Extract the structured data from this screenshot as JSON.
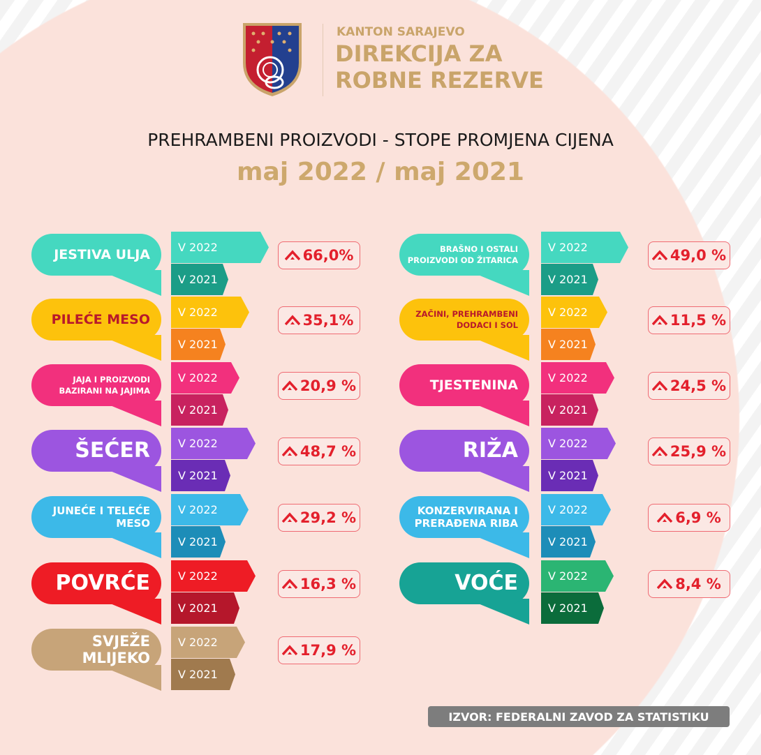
{
  "header": {
    "org_top": "KANTON SARAJEVO",
    "org_line1": "DIREKCIJA ZA",
    "org_line2": "ROBNE REZERVE",
    "title": "PREHRAMBENI PROIZVODI - STOPE PROMJENA CIJENA",
    "period": "maj 2022 / maj 2021"
  },
  "labels": {
    "year_new": "V 2022",
    "year_old": "V 2021"
  },
  "icons": {
    "change": "up-chevron-icon",
    "logo": "coat-of-arms-shield"
  },
  "left_items": [
    {
      "name": "JESTIVA ULJA",
      "change": "66,0%",
      "color": "#45d8c0",
      "color_dark": "#1b9d87",
      "text_color": "#ffffff",
      "size": "big"
    },
    {
      "name": "PILEĆE MESO",
      "change": "35,1%",
      "color": "#fdc20c",
      "color_dark": "#f5821f",
      "text_color": "#b8192b",
      "size": "big"
    },
    {
      "name": "JAJA I PROIZVODI BAZIRANI NA JAJIMA",
      "change": "20,9 %",
      "color": "#f2307d",
      "color_dark": "#c8225f",
      "text_color": "#ffffff",
      "size": "small"
    },
    {
      "name": "ŠEĆER",
      "change": "48,7 %",
      "color": "#9c55e0",
      "color_dark": "#6a2db5",
      "text_color": "#ffffff",
      "size": "huge"
    },
    {
      "name": "JUNEĆE I TELEĆE MESO",
      "change": "29,2 %",
      "color": "#3cb9e8",
      "color_dark": "#1d8db8",
      "text_color": "#ffffff",
      "size": "mid"
    },
    {
      "name": "POVRĆE",
      "change": "16,3 %",
      "color": "#ee1c25",
      "color_dark": "#b5172b",
      "text_color": "#ffffff",
      "size": "huge"
    },
    {
      "name": "SVJEŽE MLIJEKO",
      "change": "17,9 %",
      "color": "#c7a479",
      "color_dark": "#a07a4e",
      "text_color": "#ffffff",
      "size": "big2"
    }
  ],
  "right_items": [
    {
      "name": "BRAŠNO I OSTALI PROIZVODI OD ŽITARICA",
      "change": "49,0 %",
      "color": "#45d8c0",
      "color_dark": "#1b9d87",
      "text_color": "#ffffff",
      "size": "small"
    },
    {
      "name": "ZAČINI, PREHRAMBENI DODACI I SOL",
      "change": "11,5 %",
      "color": "#fdc20c",
      "color_dark": "#f5821f",
      "text_color": "#b8192b",
      "size": "small"
    },
    {
      "name": "TJESTENINA",
      "change": "24,5 %",
      "color": "#f2307d",
      "color_dark": "#c8225f",
      "text_color": "#ffffff",
      "size": "big"
    },
    {
      "name": "RIŽA",
      "change": "25,9 %",
      "color": "#9c55e0",
      "color_dark": "#6a2db5",
      "text_color": "#ffffff",
      "size": "huge"
    },
    {
      "name": "KONZERVIRANA I PRERAĐENA RIBA",
      "change": "6,9 %",
      "color": "#3cb9e8",
      "color_dark": "#1d8db8",
      "text_color": "#ffffff",
      "size": "mid"
    },
    {
      "name": "VOĆE",
      "change": "8,4 %",
      "color": "#2bb573",
      "color_dark": "#0b6c3b",
      "bubble_color": "#17a395",
      "text_color": "#ffffff",
      "size": "huge"
    }
  ],
  "footer": {
    "source": "IZVOR: FEDERALNI ZAVOD ZA STATISTIKU"
  }
}
